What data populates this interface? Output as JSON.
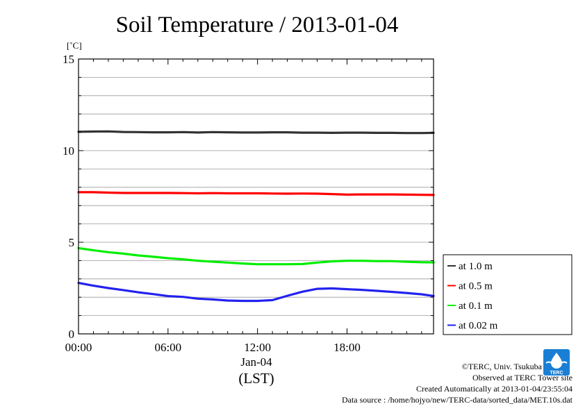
{
  "chart_data": {
    "type": "line",
    "title": "Soil Temperature / 2013-01-04",
    "ylabel": "[˚C]",
    "xlabel": "(LST)",
    "date_label": "Jan-04",
    "ylim": [
      0,
      15
    ],
    "y_ticks": [
      "0",
      "5",
      "10",
      "15"
    ],
    "xlim_hours": [
      0,
      23.8
    ],
    "x_ticks": [
      {
        "hour": 0,
        "label": "00:00"
      },
      {
        "hour": 6,
        "label": "06:00"
      },
      {
        "hour": 12,
        "label": "12:00"
      },
      {
        "hour": 18,
        "label": "18:00"
      }
    ],
    "grid": true,
    "legend_position": "right",
    "x_hours": [
      0,
      1,
      2,
      3,
      4,
      5,
      6,
      7,
      8,
      9,
      10,
      11,
      12,
      13,
      14,
      15,
      16,
      17,
      18,
      19,
      20,
      21,
      22,
      23,
      23.8
    ],
    "series": [
      {
        "name": "at 1.0 m",
        "color": "#333333",
        "values": [
          11.03,
          11.04,
          11.05,
          11.02,
          11.01,
          11.0,
          11.0,
          11.01,
          10.99,
          11.01,
          11.0,
          10.99,
          10.99,
          11.0,
          11.0,
          10.98,
          10.98,
          10.97,
          10.98,
          10.98,
          10.97,
          10.97,
          10.96,
          10.96,
          10.97
        ]
      },
      {
        "name": "at 0.5 m",
        "color": "#ff0000",
        "values": [
          7.73,
          7.73,
          7.71,
          7.69,
          7.69,
          7.69,
          7.69,
          7.68,
          7.67,
          7.68,
          7.67,
          7.67,
          7.67,
          7.66,
          7.65,
          7.66,
          7.65,
          7.63,
          7.6,
          7.61,
          7.61,
          7.61,
          7.6,
          7.59,
          7.58
        ]
      },
      {
        "name": "at 0.1 m",
        "color": "#00ee00",
        "values": [
          4.68,
          4.56,
          4.46,
          4.38,
          4.28,
          4.21,
          4.13,
          4.07,
          3.99,
          3.94,
          3.89,
          3.84,
          3.8,
          3.8,
          3.8,
          3.81,
          3.89,
          3.96,
          3.99,
          3.99,
          3.97,
          3.97,
          3.93,
          3.91,
          3.9
        ]
      },
      {
        "name": "at 0.02 m",
        "color": "#2222ee",
        "values": [
          2.78,
          2.63,
          2.5,
          2.39,
          2.27,
          2.17,
          2.06,
          2.02,
          1.92,
          1.88,
          1.82,
          1.8,
          1.8,
          1.84,
          2.08,
          2.3,
          2.46,
          2.48,
          2.44,
          2.4,
          2.35,
          2.29,
          2.23,
          2.16,
          2.07
        ]
      }
    ]
  },
  "credits": {
    "copyright": "©TERC, Univ. Tsukuba",
    "observed": "Observed at TERC Tower site",
    "created": "Created Automatically at 2013-01-04/23:55:04",
    "source": "Data source : /home/hojyo/new/TERC-data/sorted_data/MET.10s.dat"
  },
  "logo": {
    "text": "TERC",
    "color": "#1a7fd4"
  }
}
